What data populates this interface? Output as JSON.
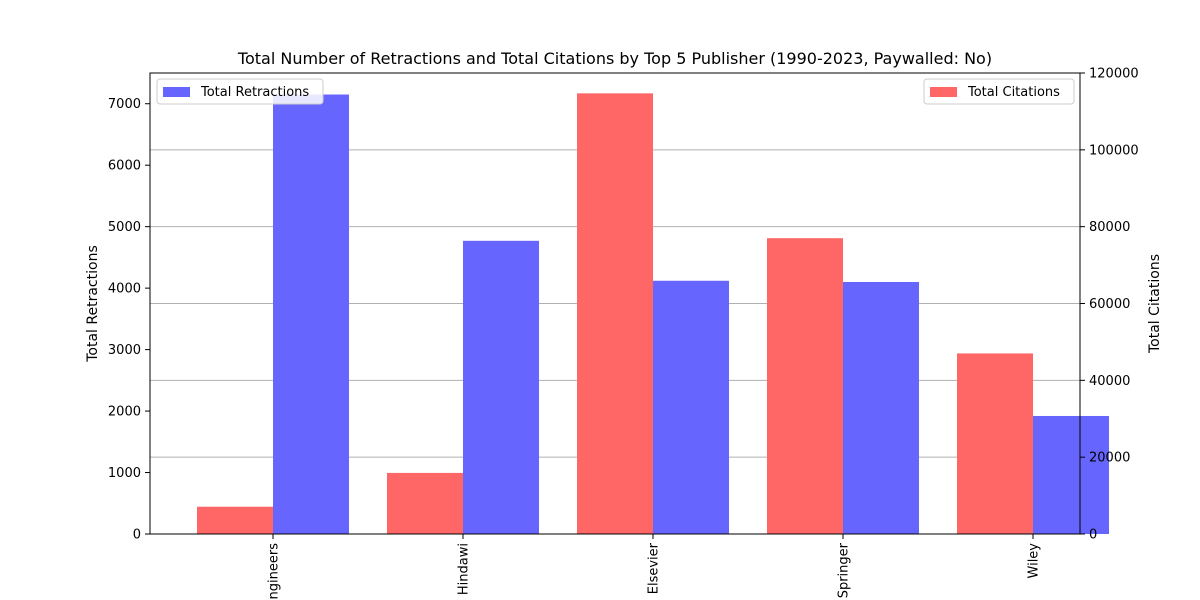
{
  "chart_data": {
    "type": "bar",
    "title": "Total Number of Retractions and Total Citations by Top 5 Publisher (1990-2023, Paywalled: No)",
    "categories": [
      "Engineers",
      "Hindawi",
      "Elsevier",
      "Springer",
      "Wiley"
    ],
    "category_labels_visible": [
      "ngineers",
      "Hindawi",
      "Elsevier",
      "Springer",
      "Wiley"
    ],
    "ylabel_left": "Total Retractions",
    "ylabel_right": "Total Citations",
    "ylim_left": [
      0,
      7500
    ],
    "ylim_right": [
      0,
      120000
    ],
    "yticks_left": [
      "0",
      "1000",
      "2000",
      "3000",
      "4000",
      "5000",
      "6000",
      "7000"
    ],
    "yticks_right": [
      "0",
      "20000",
      "40000",
      "60000",
      "80000",
      "100000",
      "120000"
    ],
    "series": [
      {
        "name": "Total Retractions",
        "axis": "left",
        "color": "#6666ff",
        "values": [
          7150,
          4770,
          4120,
          4100,
          1920
        ]
      },
      {
        "name": "Total Citations",
        "axis": "right",
        "color": "#ff6666",
        "values": [
          7100,
          15900,
          114700,
          77000,
          47000
        ]
      }
    ],
    "legend_left_position": "upper-left",
    "legend_right_position": "upper-right",
    "grid": "horizontal (right axis)"
  }
}
